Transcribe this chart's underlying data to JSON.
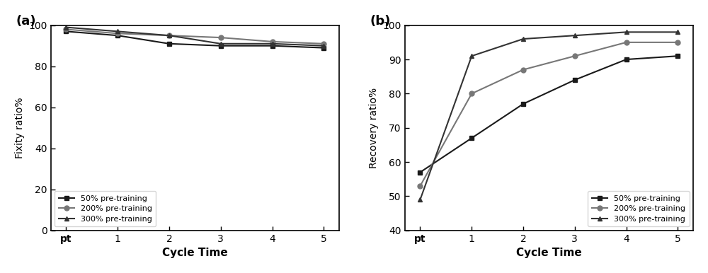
{
  "x_ticks": [
    "pt",
    "1",
    "2",
    "3",
    "4",
    "5"
  ],
  "x_vals": [
    0,
    1,
    2,
    3,
    4,
    5
  ],
  "fixity_50": [
    97,
    95,
    91,
    90,
    90,
    89
  ],
  "fixity_200": [
    98,
    96,
    95,
    94,
    92,
    91
  ],
  "fixity_300": [
    99,
    97,
    95,
    91,
    91,
    90
  ],
  "recovery_50": [
    57,
    67,
    77,
    84,
    90,
    91
  ],
  "recovery_200": [
    53,
    80,
    87,
    91,
    95,
    95
  ],
  "recovery_300": [
    49,
    91,
    96,
    97,
    98,
    98
  ],
  "color_50": "#1a1a1a",
  "color_200": "#777777",
  "color_300": "#333333",
  "marker_50": "s",
  "marker_200": "o",
  "marker_300": "^",
  "label_50": "50% pre-training",
  "label_200": "200% pre-training",
  "label_300": "300% pre-training",
  "fixity_ylabel": "Fixity ratio%",
  "recovery_ylabel": "Recovery ratio%",
  "xlabel": "Cycle Time",
  "fixity_ylim": [
    0,
    100
  ],
  "recovery_ylim": [
    40,
    100
  ],
  "fixity_yticks": [
    0,
    20,
    40,
    60,
    80,
    100
  ],
  "recovery_yticks": [
    40,
    50,
    60,
    70,
    80,
    90,
    100
  ],
  "panel_a": "(a)",
  "panel_b": "(b)"
}
